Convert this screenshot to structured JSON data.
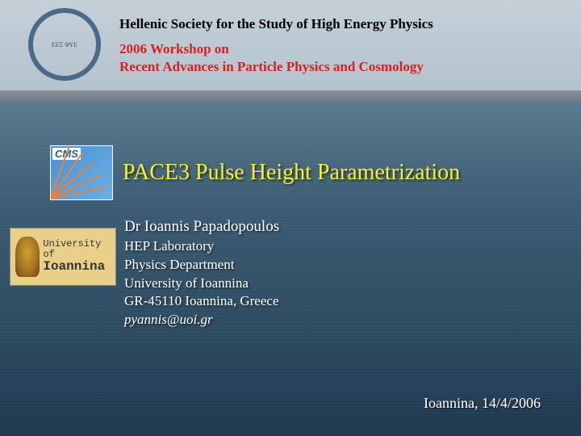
{
  "seal": {
    "org_abbrev": "ΕΕΣ ΦΥΕ"
  },
  "header": {
    "society": "Hellenic Society for the Study of High Energy Physics",
    "society_color": "#000000",
    "workshop_line1": "2006 Workshop on",
    "workshop_line2": "Recent Advances in Particle Physics and Cosmology",
    "workshop_color": "#d82020"
  },
  "cms": {
    "label": "CMS",
    "bg_gradient_start": "#4a90d0",
    "bg_gradient_end": "#6ab0e8",
    "ray_color": "#f08030"
  },
  "title": {
    "text": "PACE3 Pulse Height Parametrization",
    "color": "#f5f028",
    "fontsize": 28
  },
  "university": {
    "line1": "University of",
    "line2": "Ioannina",
    "bg_color": "#e8d088"
  },
  "author": {
    "name": "Dr Ioannis Papadopoulos",
    "lab": "HEP Laboratory",
    "dept": "Physics Department",
    "uni": "University of Ioannina",
    "address": "GR-45110 Ioannina, Greece",
    "email": "pyannis@uoi.gr",
    "text_color": "#ffffff"
  },
  "footer": {
    "place_date": "Ioannina, 14/4/2006"
  },
  "background": {
    "sky_color": "#b8c8d4",
    "land_color": "#8a9098",
    "sea_top": "#5a7a90",
    "sea_bottom": "#1f3850"
  }
}
